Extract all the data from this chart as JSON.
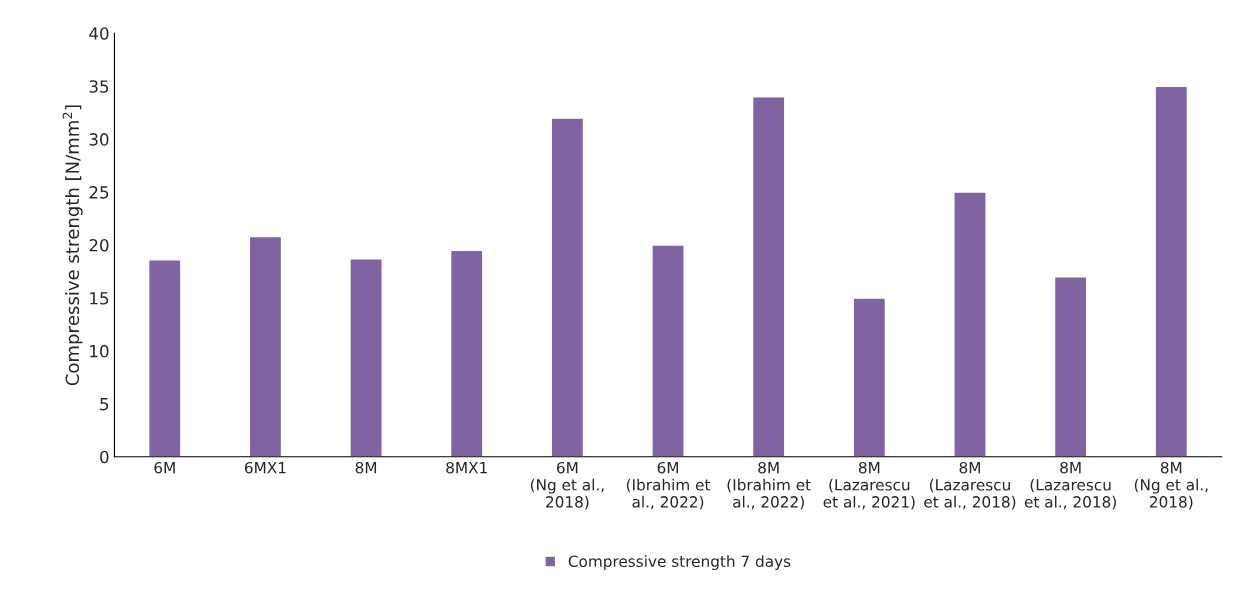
{
  "chart_data": {
    "type": "bar",
    "ylabel": "Compressive strength [N/mm$^{2}$]",
    "categories": [
      "6M",
      "6MX1",
      "8M",
      "8MX1",
      "6M\n(Ng et al.,\n2018)",
      "6M\n(Ibrahim et\nal., 2022)",
      "8M\n(Ibrahim et\nal., 2022)",
      "8M\n(Lazarescu\net al., 2021)",
      "8M\n(Lazarescu\net al., 2018)",
      "8M\n(Lazarescu\net al., 2018)",
      "8M\n(Ng et al.,\n2018)"
    ],
    "series": [
      {
        "name": "Compressive strength 7 days",
        "color": "#8064a2",
        "values": [
          18.6,
          20.8,
          18.7,
          19.5,
          32.0,
          20.0,
          34.0,
          15.0,
          25.0,
          17.0,
          35.0
        ]
      }
    ],
    "ylim": [
      0,
      40
    ],
    "yticks": [
      0,
      5,
      10,
      15,
      20,
      25,
      30,
      35,
      40
    ],
    "grid": false,
    "legend": "bottom"
  }
}
